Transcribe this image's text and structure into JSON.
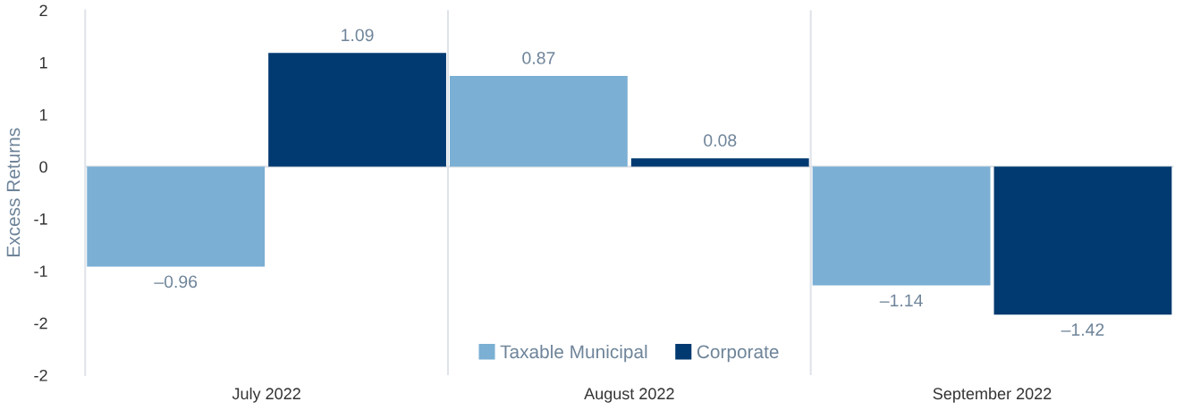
{
  "chart_data": {
    "type": "bar",
    "ylabel": "Excess Returns",
    "categories": [
      "July 2022",
      "August 2022",
      "September 2022"
    ],
    "series": [
      {
        "name": "Taxable Municipal",
        "color": "#7bafd4",
        "values": [
          -0.96,
          0.87,
          -1.14
        ],
        "value_labels": [
          "–0.96",
          "0.87",
          "–1.14"
        ]
      },
      {
        "name": "Corporate",
        "color": "#003a70",
        "values": [
          1.09,
          0.08,
          -1.42
        ],
        "value_labels": [
          "1.09",
          "0.08",
          "–1.42"
        ]
      }
    ],
    "ylim": [
      -2,
      1.5
    ],
    "yticks": [
      {
        "value": 1.5,
        "label": "2"
      },
      {
        "value": 1,
        "label": "1"
      },
      {
        "value": 0.5,
        "label": "1"
      },
      0,
      {
        "value": -0.5,
        "label": "-1"
      },
      {
        "value": -1,
        "label": "-1"
      },
      {
        "value": -1.5,
        "label": "-2"
      },
      {
        "value": -2,
        "label": "-2"
      }
    ],
    "grid": "x",
    "legend": "bottom"
  }
}
